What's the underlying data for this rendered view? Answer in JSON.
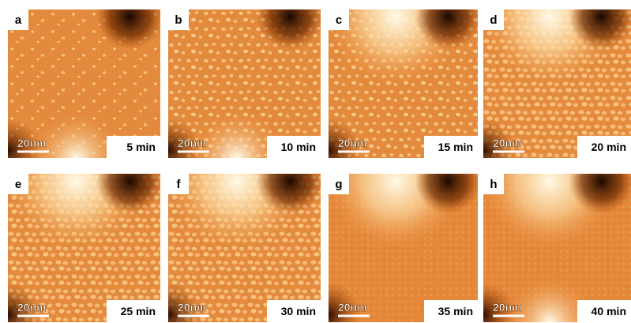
{
  "panels": [
    {
      "label": "a",
      "scale": "20nm",
      "time": "5 min"
    },
    {
      "label": "b",
      "scale": "20nm",
      "time": "10 min"
    },
    {
      "label": "c",
      "scale": "20nm",
      "time": "15 min"
    },
    {
      "label": "d",
      "scale": "20nm",
      "time": "20 min"
    },
    {
      "label": "e",
      "scale": "20nm",
      "time": "25 min"
    },
    {
      "label": "f",
      "scale": "20nm",
      "time": "30 min"
    },
    {
      "label": "g",
      "scale": "20nm",
      "time": "35 min"
    },
    {
      "label": "h",
      "scale": "20nm",
      "time": "40 min"
    }
  ]
}
